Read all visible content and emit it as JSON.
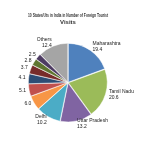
{
  "chart_data": {
    "type": "pie",
    "title": "10 States/Uts in India in Number of Foreign Tourist Visits",
    "categories": [
      "Maharashtra",
      "Tamil Nadu",
      "Uttar Pradesh",
      "Delhi",
      null,
      null,
      null,
      null,
      null,
      null,
      "Others"
    ],
    "values": [
      19.4,
      20.6,
      13.2,
      10.2,
      6.0,
      5.1,
      4.1,
      3.7,
      2.8,
      2.5,
      12.4
    ],
    "value_labels": [
      "19.4",
      "20.6",
      "13.2",
      "10.2",
      "6.0",
      "5.1",
      "4.1",
      "3.7",
      "2.8",
      "2.5",
      "12.4"
    ],
    "colors": [
      "#4f81bd",
      "#9bbb59",
      "#8064a2",
      "#4bacc6",
      "#f79646",
      "#c0504d",
      "#2c4d75",
      "#772c2a",
      "#5f7530",
      "#4d3b62",
      "#a5a5a5"
    ],
    "data_labels": true
  }
}
